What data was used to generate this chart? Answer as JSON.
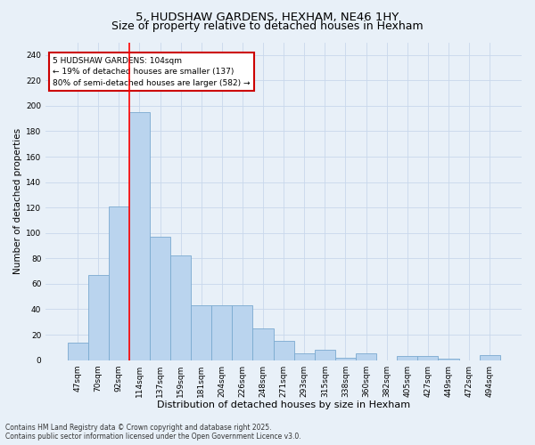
{
  "title": "5, HUDSHAW GARDENS, HEXHAM, NE46 1HY",
  "subtitle": "Size of property relative to detached houses in Hexham",
  "xlabel": "Distribution of detached houses by size in Hexham",
  "ylabel": "Number of detached properties",
  "categories": [
    "47sqm",
    "70sqm",
    "92sqm",
    "114sqm",
    "137sqm",
    "159sqm",
    "181sqm",
    "204sqm",
    "226sqm",
    "248sqm",
    "271sqm",
    "293sqm",
    "315sqm",
    "338sqm",
    "360sqm",
    "382sqm",
    "405sqm",
    "427sqm",
    "449sqm",
    "472sqm",
    "494sqm"
  ],
  "values": [
    14,
    67,
    121,
    195,
    97,
    82,
    43,
    43,
    43,
    25,
    15,
    5,
    8,
    2,
    5,
    0,
    3,
    3,
    1,
    0,
    4
  ],
  "bar_color": "#bad4ee",
  "bar_edge_color": "#7aaad0",
  "bar_edge_width": 0.6,
  "grid_color": "#c8d8ec",
  "background_color": "#e8f0f8",
  "red_line_x": 2.5,
  "annotation_text": "5 HUDSHAW GARDENS: 104sqm\n← 19% of detached houses are smaller (137)\n80% of semi-detached houses are larger (582) →",
  "annotation_box_color": "#ffffff",
  "annotation_box_edge_color": "#cc0000",
  "ylim": [
    0,
    250
  ],
  "yticks": [
    0,
    20,
    40,
    60,
    80,
    100,
    120,
    140,
    160,
    180,
    200,
    220,
    240
  ],
  "footer": "Contains HM Land Registry data © Crown copyright and database right 2025.\nContains public sector information licensed under the Open Government Licence v3.0.",
  "title_fontsize": 9.5,
  "xlabel_fontsize": 8,
  "ylabel_fontsize": 7.5,
  "tick_fontsize": 6.5,
  "annotation_fontsize": 6.5,
  "footer_fontsize": 5.5
}
